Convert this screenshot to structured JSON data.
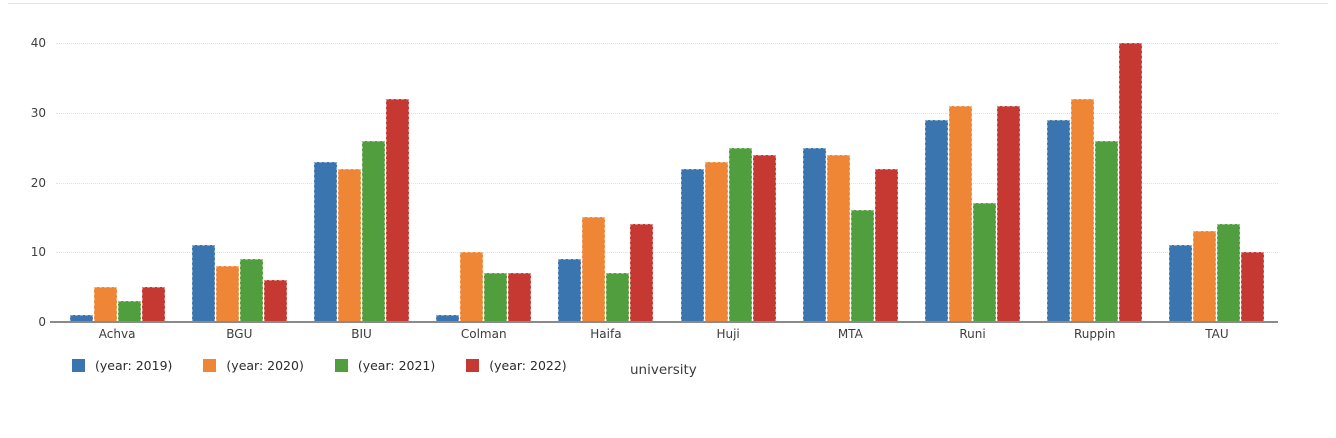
{
  "chart_data": {
    "type": "bar",
    "title": "",
    "xlabel": "university",
    "ylabel": "",
    "ylim": [
      0,
      42
    ],
    "yticks": [
      0,
      10,
      20,
      30,
      40
    ],
    "grid": true,
    "legend_position": "bottom-left",
    "categories": [
      "Achva",
      "BGU",
      "BIU",
      "Colman",
      "Haifa",
      "Huji",
      "MTA",
      "Runi",
      "Ruppin",
      "TAU"
    ],
    "series": [
      {
        "name": "(year: 2019)",
        "color": "#3B75AF",
        "values": [
          1,
          11,
          23,
          1,
          9,
          22,
          25,
          29,
          29,
          11
        ]
      },
      {
        "name": "(year: 2020)",
        "color": "#EF8636",
        "values": [
          5,
          8,
          22,
          10,
          15,
          23,
          24,
          31,
          32,
          13
        ]
      },
      {
        "name": "(year: 2021)",
        "color": "#519E3E",
        "values": [
          3,
          9,
          26,
          7,
          7,
          25,
          16,
          17,
          26,
          14
        ]
      },
      {
        "name": "(year: 2022)",
        "color": "#C53932",
        "values": [
          5,
          6,
          32,
          7,
          14,
          24,
          22,
          31,
          40,
          10
        ]
      }
    ]
  },
  "colors": {
    "background": "#ffffff",
    "gridline": "#e2e2e2",
    "axis_line": "#8a8a8a",
    "tick_text": "#3f3f3f",
    "legend_text": "#2b2b2b"
  }
}
